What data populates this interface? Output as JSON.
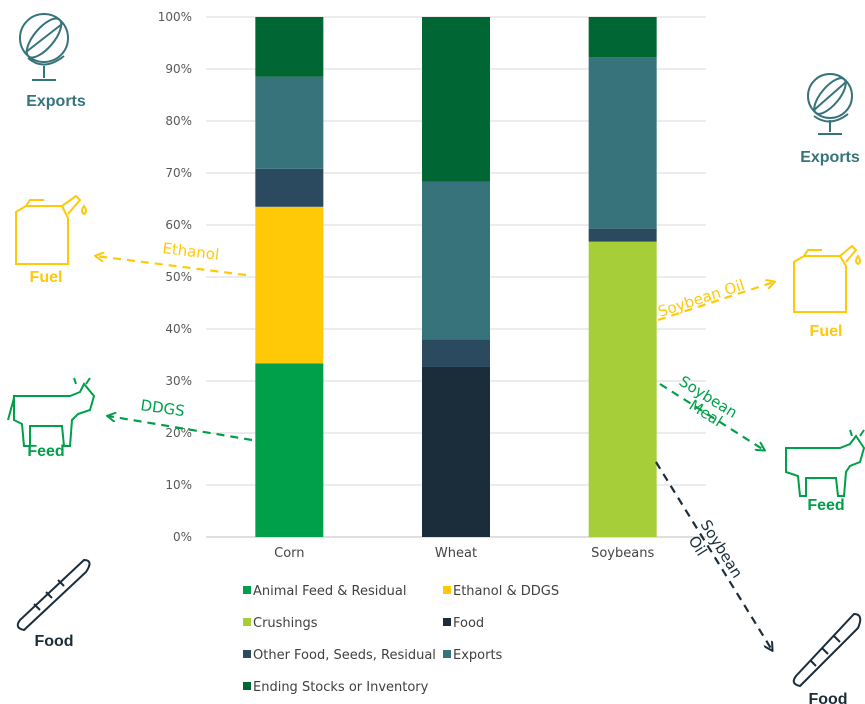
{
  "chart_data": {
    "type": "bar",
    "stacked": true,
    "title": "",
    "xlabel": "",
    "ylabel": "",
    "ylim": [
      0,
      100
    ],
    "ticks": [
      "0%",
      "10%",
      "20%",
      "30%",
      "40%",
      "50%",
      "60%",
      "70%",
      "80%",
      "90%",
      "100%"
    ],
    "categories": [
      "Corn",
      "Wheat",
      "Soybeans"
    ],
    "series": [
      {
        "name": "Animal Feed & Residual",
        "color": "#00A04A",
        "values": [
          33.4,
          0,
          0
        ]
      },
      {
        "name": "Ethanol & DDGS",
        "color": "#FFC907",
        "values": [
          30.1,
          0,
          0
        ]
      },
      {
        "name": "Crushings",
        "color": "#A6CE39",
        "values": [
          0,
          0,
          56.8
        ]
      },
      {
        "name": "Food",
        "color": "#1B2D3A",
        "values": [
          0,
          32.7,
          0
        ]
      },
      {
        "name": "Other Food, Seeds, Residual",
        "color": "#2B4A60",
        "values": [
          7.3,
          5.3,
          2.5
        ]
      },
      {
        "name": "Exports",
        "color": "#36737A",
        "values": [
          17.7,
          30.3,
          33.0
        ]
      },
      {
        "name": "Ending Stocks or Inventory",
        "color": "#006633",
        "values": [
          11.5,
          31.7,
          7.7
        ]
      }
    ],
    "grid": true,
    "legend_position": "bottom"
  },
  "icons": {
    "left": [
      {
        "name": "globe-icon",
        "label": "Exports",
        "color": "#36737A"
      },
      {
        "name": "fuel-can-icon",
        "label": "Fuel",
        "color": "#FFC907"
      },
      {
        "name": "cow-icon",
        "label": "Feed",
        "color": "#00A04A"
      },
      {
        "name": "bread-icon",
        "label": "Food",
        "color": "#1B2D3A"
      }
    ],
    "right": [
      {
        "name": "globe-icon",
        "label": "Exports",
        "color": "#36737A"
      },
      {
        "name": "fuel-can-icon",
        "label": "Fuel",
        "color": "#FFC907"
      },
      {
        "name": "cow-icon",
        "label": "Feed",
        "color": "#00A04A"
      },
      {
        "name": "bread-icon",
        "label": "Food",
        "color": "#1B2D3A"
      }
    ]
  },
  "flows": {
    "ethanol": {
      "label": "Ethanol",
      "color": "#FFC907"
    },
    "ddgs": {
      "label": "DDGS",
      "color": "#00A04A"
    },
    "soybean_oil_fuel": {
      "label": "Soybean Oil",
      "color": "#FFC907"
    },
    "soybean_meal_l1": "Soybean",
    "soybean_meal_l2": "Meal",
    "soybean_meal_color": "#00A04A",
    "soybean_oil_food_l1": "Soybean",
    "soybean_oil_food_l2": "Oil",
    "soybean_oil_food_color": "#1B2D3A"
  }
}
